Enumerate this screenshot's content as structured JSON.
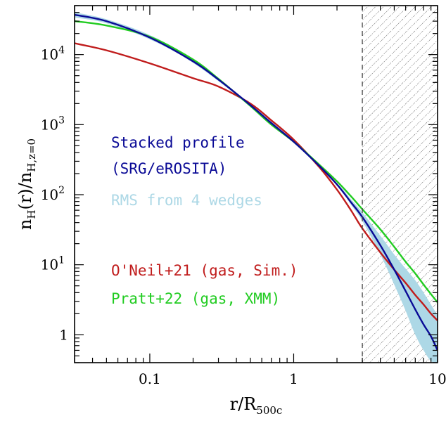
{
  "chart_data": {
    "type": "line",
    "xscale": "log",
    "yscale": "log",
    "xlim": [
      0.03,
      10
    ],
    "ylim": [
      0.4,
      50000
    ],
    "xlabel": "r/R",
    "xlabel_sub": "500c",
    "ylabel": {
      "lead": "n",
      "lead_sub": "H",
      "mid": "(r)/n",
      "tail_sub": "H,z=0"
    },
    "x_ticks": [
      {
        "value": 0.1,
        "label": "0.1"
      },
      {
        "value": 1,
        "label": "1"
      },
      {
        "value": 10,
        "label": "10"
      }
    ],
    "y_ticks": [
      {
        "value": 1,
        "base": "1",
        "exp": ""
      },
      {
        "value": 10,
        "base": "10",
        "exp": "1"
      },
      {
        "value": 100,
        "base": "10",
        "exp": "2"
      },
      {
        "value": 1000,
        "base": "10",
        "exp": "3"
      },
      {
        "value": 10000,
        "base": "10",
        "exp": "4"
      }
    ],
    "excluded_region": {
      "x_start": 3,
      "x_end": 10,
      "style": "hatched"
    },
    "series": [
      {
        "name": "Stacked profile (SRG/eROSITA)",
        "color": "#0a0a96",
        "x": [
          0.03,
          0.05,
          0.1,
          0.2,
          0.3,
          0.5,
          0.7,
          1.0,
          1.5,
          2.0,
          2.5,
          3.0,
          4.0,
          5.0,
          6.0,
          7.0,
          8.0,
          9.0,
          10.0
        ],
        "y": [
          37000,
          30000,
          17500,
          8000,
          4400,
          1900,
          1050,
          570,
          260,
          140,
          78,
          48,
          19,
          8.5,
          4.2,
          2.3,
          1.4,
          0.95,
          0.6
        ]
      },
      {
        "name": "O'Neil+21 (gas, Sim.)",
        "color": "#c01c1c",
        "x": [
          0.03,
          0.05,
          0.1,
          0.2,
          0.3,
          0.5,
          0.7,
          1.0,
          1.5,
          2.0,
          2.5,
          3.0,
          4.0,
          5.0,
          6.0,
          7.0,
          8.0,
          9.0,
          10.0
        ],
        "y": [
          14500,
          11500,
          7500,
          4600,
          3500,
          2000,
          1150,
          610,
          250,
          118,
          60,
          33,
          15,
          8.5,
          5.5,
          3.7,
          2.7,
          2.0,
          1.6
        ]
      },
      {
        "name": "Pratt+22 (gas, XMM)",
        "color": "#22cc22",
        "x": [
          0.03,
          0.05,
          0.1,
          0.2,
          0.3,
          0.5,
          0.7,
          1.0,
          1.5,
          2.0,
          2.5,
          3.0,
          4.0,
          5.0,
          6.0,
          7.0,
          8.0,
          9.0,
          10.0
        ],
        "y": [
          30000,
          26000,
          18000,
          8500,
          4500,
          1850,
          1000,
          570,
          270,
          155,
          95,
          62,
          32,
          18,
          11,
          7.5,
          5.2,
          3.8,
          2.9
        ]
      }
    ],
    "band": {
      "name": "RMS from 4 wedges",
      "color": "#add8e6",
      "x": [
        0.03,
        0.05,
        0.1,
        0.2,
        0.5,
        1.0,
        2.0,
        2.5,
        3.0,
        4.0,
        5.0,
        6.0,
        7.0,
        8.0,
        9.0,
        10.0
      ],
      "lower": [
        34000,
        28000,
        16500,
        7600,
        1850,
        555,
        135,
        72,
        42,
        14,
        5.2,
        2.2,
        1.0,
        0.6,
        0.42,
        0.4
      ],
      "upper": [
        40000,
        32000,
        19000,
        8500,
        1950,
        585,
        146,
        86,
        56,
        26,
        14,
        8.8,
        6.0,
        4.0,
        2.7,
        1.9
      ]
    },
    "legend": {
      "placement": "left-center",
      "entries": [
        {
          "lines": [
            "Stacked profile",
            "(SRG/eROSITA)"
          ],
          "color": "#0a0a96"
        },
        {
          "lines": [
            "RMS from 4 wedges"
          ],
          "color": "#add8e6"
        },
        {
          "lines": [
            "O'Neil+21 (gas, Sim.)"
          ],
          "color": "#c01c1c"
        },
        {
          "lines": [
            "Pratt+22 (gas, XMM)"
          ],
          "color": "#22cc22"
        }
      ]
    }
  }
}
